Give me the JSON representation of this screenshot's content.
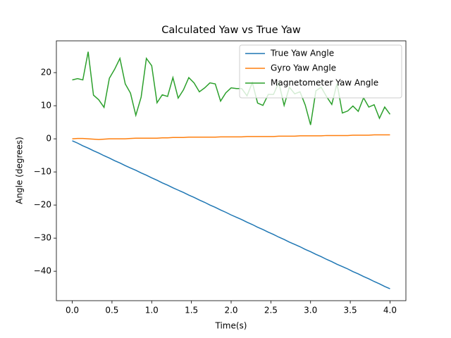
{
  "chart_data": {
    "type": "line",
    "title": "Calculated Yaw vs True Yaw",
    "x_label": "Time(s)",
    "y_label": "Angle (degrees)",
    "x": [
      0,
      0.067,
      0.133,
      0.2,
      0.267,
      0.333,
      0.4,
      0.467,
      0.533,
      0.6,
      0.667,
      0.733,
      0.8,
      0.867,
      0.933,
      1,
      1.067,
      1.133,
      1.2,
      1.267,
      1.333,
      1.4,
      1.467,
      1.533,
      1.6,
      1.667,
      1.733,
      1.8,
      1.867,
      1.933,
      2,
      2.067,
      2.133,
      2.2,
      2.267,
      2.333,
      2.4,
      2.467,
      2.533,
      2.6,
      2.667,
      2.733,
      2.8,
      2.867,
      2.933,
      3,
      3.067,
      3.133,
      3.2,
      3.267,
      3.333,
      3.4,
      3.467,
      3.533,
      3.6,
      3.667,
      3.733,
      3.8,
      3.867,
      3.933,
      4
    ],
    "series": [
      {
        "name": "True Yaw Angle",
        "color": "#1f77b4",
        "values": [
          -0.6,
          -1.3,
          -2.1,
          -2.8,
          -3.6,
          -4.3,
          -5.1,
          -5.8,
          -6.6,
          -7.3,
          -8.1,
          -8.8,
          -9.5,
          -10.3,
          -11.0,
          -11.8,
          -12.5,
          -13.3,
          -14.0,
          -14.8,
          -15.5,
          -16.2,
          -17.0,
          -17.7,
          -18.5,
          -19.2,
          -20.0,
          -20.7,
          -21.5,
          -22.2,
          -23.0,
          -23.7,
          -24.4,
          -25.2,
          -25.9,
          -26.7,
          -27.4,
          -28.2,
          -28.9,
          -29.7,
          -30.4,
          -31.2,
          -31.9,
          -32.6,
          -33.4,
          -34.1,
          -34.9,
          -35.6,
          -36.4,
          -37.1,
          -37.9,
          -38.6,
          -39.3,
          -40.1,
          -40.8,
          -41.6,
          -42.3,
          -43.1,
          -43.8,
          -44.6,
          -45.3
        ]
      },
      {
        "name": "Gyro Yaw Angle",
        "color": "#ff7f0e",
        "values": [
          0.0,
          0.1,
          0.1,
          0.0,
          -0.1,
          -0.2,
          -0.1,
          0.0,
          0.0,
          0.0,
          0.0,
          0.1,
          0.2,
          0.2,
          0.2,
          0.2,
          0.2,
          0.3,
          0.3,
          0.4,
          0.4,
          0.4,
          0.5,
          0.5,
          0.5,
          0.5,
          0.5,
          0.5,
          0.6,
          0.6,
          0.6,
          0.6,
          0.6,
          0.7,
          0.7,
          0.7,
          0.7,
          0.7,
          0.7,
          0.8,
          0.8,
          0.8,
          0.8,
          0.9,
          0.9,
          0.9,
          0.9,
          0.9,
          1.0,
          1.0,
          1.0,
          1.0,
          1.0,
          1.1,
          1.1,
          1.1,
          1.1,
          1.2,
          1.2,
          1.2,
          1.2
        ]
      },
      {
        "name": "Magnetometer Yaw Angle",
        "color": "#2ca02c",
        "values": [
          17.8,
          18.2,
          17.8,
          26.3,
          13.2,
          11.8,
          9.5,
          18.3,
          21.0,
          24.3,
          16.6,
          13.8,
          7.1,
          12.6,
          24.3,
          22.1,
          10.9,
          13.3,
          12.8,
          18.5,
          12.3,
          14.8,
          18.5,
          16.9,
          14.2,
          15.4,
          16.9,
          16.6,
          11.4,
          13.9,
          15.4,
          15.2,
          15.2,
          13.0,
          17.0,
          10.8,
          10.1,
          13.4,
          13.4,
          17.0,
          10.1,
          15.6,
          13.6,
          14.2,
          10.2,
          4.2,
          14.5,
          15.6,
          12.8,
          10.4,
          16.7,
          7.8,
          8.4,
          9.9,
          8.3,
          12.4,
          9.6,
          10.3,
          6.2,
          9.6,
          7.4
        ]
      }
    ],
    "xlim": [
      -0.2,
      4.2
    ],
    "ylim": [
      -48.9,
      29.6
    ],
    "xticks": [
      {
        "value": 0,
        "label": "0.0"
      },
      {
        "value": 0.5,
        "label": "0.5"
      },
      {
        "value": 1,
        "label": "1.0"
      },
      {
        "value": 1.5,
        "label": "1.5"
      },
      {
        "value": 2,
        "label": "2.0"
      },
      {
        "value": 2.5,
        "label": "2.5"
      },
      {
        "value": 3,
        "label": "3.0"
      },
      {
        "value": 3.5,
        "label": "3.5"
      },
      {
        "value": 4,
        "label": "4.0"
      }
    ],
    "yticks": [
      {
        "value": -40,
        "label": "−40"
      },
      {
        "value": -30,
        "label": "−30"
      },
      {
        "value": -20,
        "label": "−20"
      },
      {
        "value": -10,
        "label": "−10"
      },
      0,
      10,
      20
    ],
    "legend": "upper right"
  }
}
